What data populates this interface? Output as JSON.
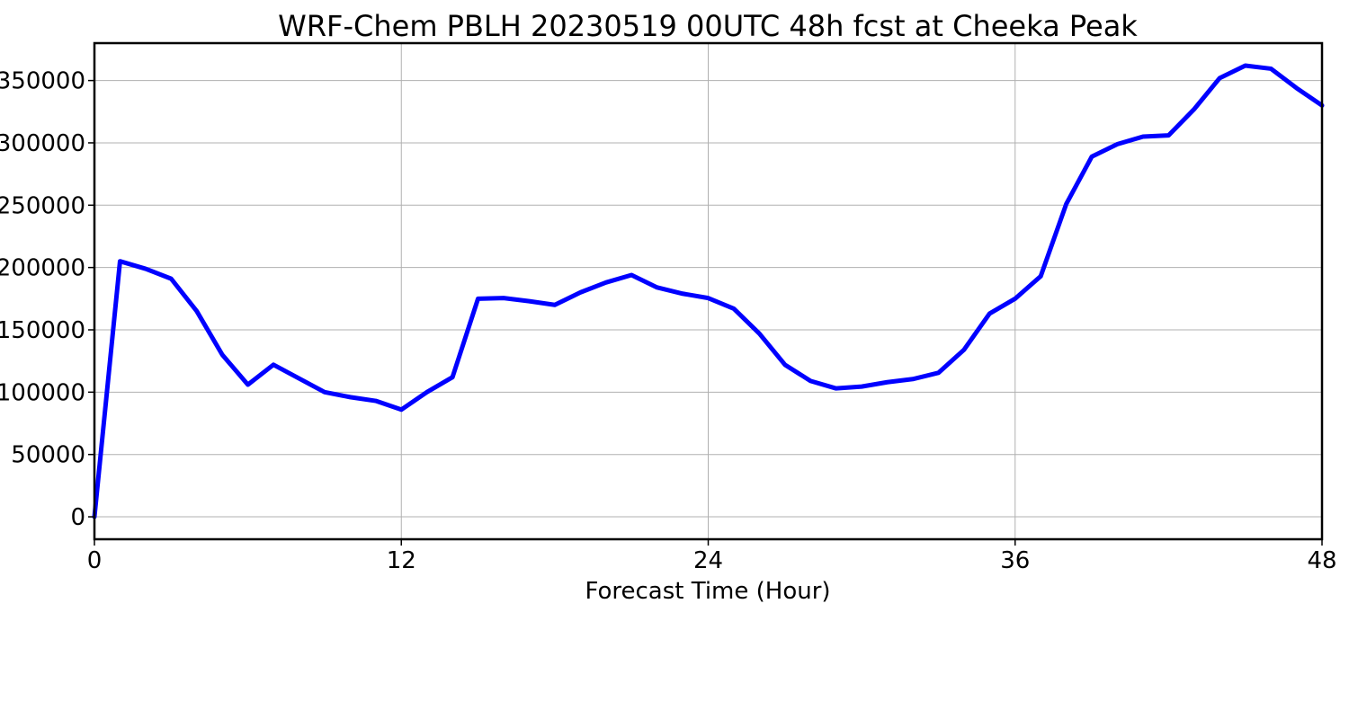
{
  "chart_data": {
    "type": "line",
    "title": "WRF-Chem PBLH  20230519 00UTC 48h fcst at Cheeka Peak",
    "xlabel": "Forecast Time (Hour)",
    "ylabel": "",
    "xlim": [
      0,
      48
    ],
    "ylim": [
      -18000,
      380000
    ],
    "xticks": [
      0,
      12,
      24,
      36,
      48
    ],
    "yticks": [
      0,
      50000,
      100000,
      150000,
      200000,
      250000,
      300000,
      350000
    ],
    "grid": true,
    "series": [
      {
        "color": "#0000ff",
        "x": [
          0,
          1,
          2,
          3,
          4,
          5,
          6,
          7,
          8,
          9,
          10,
          11,
          12,
          13,
          14,
          15,
          16,
          17,
          18,
          19,
          20,
          21,
          22,
          23,
          24,
          25,
          26,
          27,
          28,
          29,
          30,
          31,
          32,
          33,
          34,
          35,
          36,
          37,
          38,
          39,
          40,
          41,
          42,
          43,
          44,
          45,
          46,
          47,
          48
        ],
        "y": [
          0,
          205000,
          199000,
          191000,
          165000,
          130000,
          106000,
          122000,
          111000,
          100000,
          96000,
          93000,
          86000,
          100000,
          112000,
          175000,
          175500,
          173000,
          170000,
          180000,
          188000,
          194000,
          184000,
          179000,
          175500,
          167000,
          147000,
          122000,
          109000,
          103000,
          104500,
          108000,
          110500,
          115500,
          134000,
          163000,
          175000,
          193000,
          251000,
          289000,
          299000,
          305000,
          306000,
          327000,
          352000,
          362000,
          359500,
          344000,
          330000
        ]
      }
    ]
  }
}
